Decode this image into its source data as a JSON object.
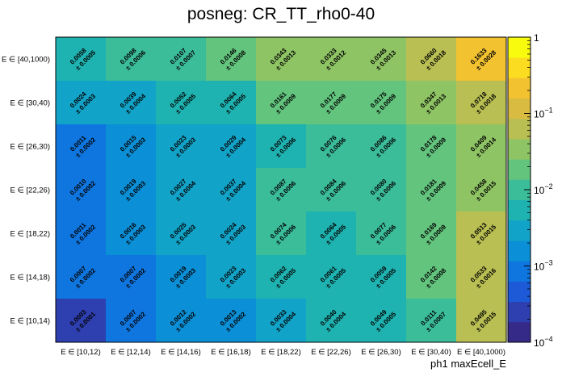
{
  "chart_data": {
    "type": "heatmap",
    "title": "posneg: CR_TT_rho0-40",
    "xlabel": "ph1 maxEcell_E",
    "ylabel": "",
    "x_categories": [
      "E ∈ [10,12)",
      "E ∈ [12,14)",
      "E ∈ [14,16)",
      "E ∈ [16,18)",
      "E ∈ [18,22)",
      "E ∈ [22,26)",
      "E ∈ [26,30)",
      "E ∈ [30,40)",
      "E ∈ [40,1000)"
    ],
    "y_categories": [
      "E ∈ [40,1000)",
      "E ∈ [30,40)",
      "E ∈ [26,30)",
      "E ∈ [22,26)",
      "E ∈ [18,22)",
      "E ∈ [14,18)",
      "E ∈ [10,14)"
    ],
    "values": [
      [
        0.0058,
        0.0098,
        0.0107,
        0.0146,
        0.0343,
        0.0333,
        0.0345,
        0.066,
        0.1633
      ],
      [
        0.0024,
        0.0039,
        0.0052,
        0.0064,
        0.0161,
        0.0177,
        0.0175,
        0.0347,
        0.0718
      ],
      [
        0.0011,
        0.0015,
        0.0023,
        0.0029,
        0.0073,
        0.0076,
        0.0086,
        0.0178,
        0.0409
      ],
      [
        0.001,
        0.0019,
        0.0027,
        0.0037,
        0.0087,
        0.0084,
        0.008,
        0.0181,
        0.0458
      ],
      [
        0.0011,
        0.0016,
        0.0025,
        0.0024,
        0.0074,
        0.0064,
        0.0077,
        0.0169,
        0.0513
      ],
      [
        0.0007,
        0.0007,
        0.0019,
        0.0023,
        0.0062,
        0.0061,
        0.0059,
        0.0142,
        0.0533
      ],
      [
        0.0003,
        0.0007,
        0.0012,
        0.0013,
        0.0033,
        0.004,
        0.0049,
        0.0111,
        0.0495
      ]
    ],
    "value_labels": [
      [
        "0.0058",
        "0.0098",
        "0.0107",
        "0.0146",
        "0.0343",
        "0.0333",
        "0.0345",
        "0.0660",
        "0.1633"
      ],
      [
        "0.0024",
        "0.0039",
        "0.0052",
        "0.0064",
        "0.0161",
        "0.0177",
        "0.0175",
        "0.0347",
        "0.0718"
      ],
      [
        "0.0011",
        "0.0015",
        "0.0023",
        "0.0029",
        "0.0073",
        "0.0076",
        "0.0086",
        "0.0178",
        "0.0409"
      ],
      [
        "0.0010",
        "0.0019",
        "0.0027",
        "0.0037",
        "0.0087",
        "0.0084",
        "0.0080",
        "0.0181",
        "0.0458"
      ],
      [
        "0.0011",
        "0.0016",
        "0.0025",
        "0.0024",
        "0.0074",
        "0.0064",
        "0.0077",
        "0.0169",
        "0.0513"
      ],
      [
        "0.0007",
        "0.0007",
        "0.0019",
        "0.0023",
        "0.0062",
        "0.0061",
        "0.0059",
        "0.0142",
        "0.0533"
      ],
      [
        "0.0003",
        "0.0007",
        "0.0012",
        "0.0013",
        "0.0033",
        "0.0040",
        "0.0049",
        "0.0111",
        "0.0495"
      ]
    ],
    "error_labels": [
      [
        "± 0.0005",
        "± 0.0006",
        "± 0.0007",
        "± 0.0008",
        "± 0.0013",
        "± 0.0012",
        "± 0.0013",
        "± 0.0018",
        "± 0.0028"
      ],
      [
        "± 0.0003",
        "± 0.0004",
        "± 0.0005",
        "± 0.0005",
        "± 0.0009",
        "± 0.0009",
        "± 0.0009",
        "± 0.0013",
        "± 0.0018"
      ],
      [
        "± 0.0002",
        "± 0.0003",
        "± 0.0003",
        "± 0.0004",
        "± 0.0006",
        "± 0.0006",
        "± 0.0006",
        "± 0.0009",
        "± 0.0014"
      ],
      [
        "± 0.0002",
        "± 0.0003",
        "± 0.0004",
        "± 0.0004",
        "± 0.0006",
        "± 0.0006",
        "± 0.0006",
        "± 0.0009",
        "± 0.0015"
      ],
      [
        "± 0.0002",
        "± 0.0003",
        "± 0.0003",
        "± 0.0003",
        "± 0.0006",
        "± 0.0005",
        "± 0.0006",
        "± 0.0009",
        "± 0.0015"
      ],
      [
        "± 0.0002",
        "± 0.0002",
        "± 0.0003",
        "± 0.0003",
        "± 0.0005",
        "± 0.0005",
        "± 0.0005",
        "± 0.0008",
        "± 0.0016"
      ],
      [
        "± 0.0001",
        "± 0.0002",
        "± 0.0002",
        "± 0.0002",
        "± 0.0004",
        "± 0.0004",
        "± 0.0005",
        "± 0.0007",
        "± 0.0015"
      ]
    ],
    "z_scale": "log",
    "zlim": [
      0.0001,
      1
    ],
    "z_ticks": [
      {
        "value": 1,
        "base": "1",
        "exp": ""
      },
      {
        "value": 0.1,
        "base": "10",
        "exp": "−1"
      },
      {
        "value": 0.01,
        "base": "10",
        "exp": "−2"
      },
      {
        "value": 0.001,
        "base": "10",
        "exp": "−3"
      },
      {
        "value": 0.0001,
        "base": "10",
        "exp": "−4"
      }
    ],
    "colormap": [
      "#352a87",
      "#2e3fb0",
      "#1c5ad7",
      "#0f76e0",
      "#0b8fd6",
      "#12a3c8",
      "#1eb3b1",
      "#3bbd9a",
      "#63c47e",
      "#8fc464",
      "#b9bf52",
      "#d9bb42",
      "#f2c230",
      "#fbdc21",
      "#f9fb0e"
    ]
  }
}
